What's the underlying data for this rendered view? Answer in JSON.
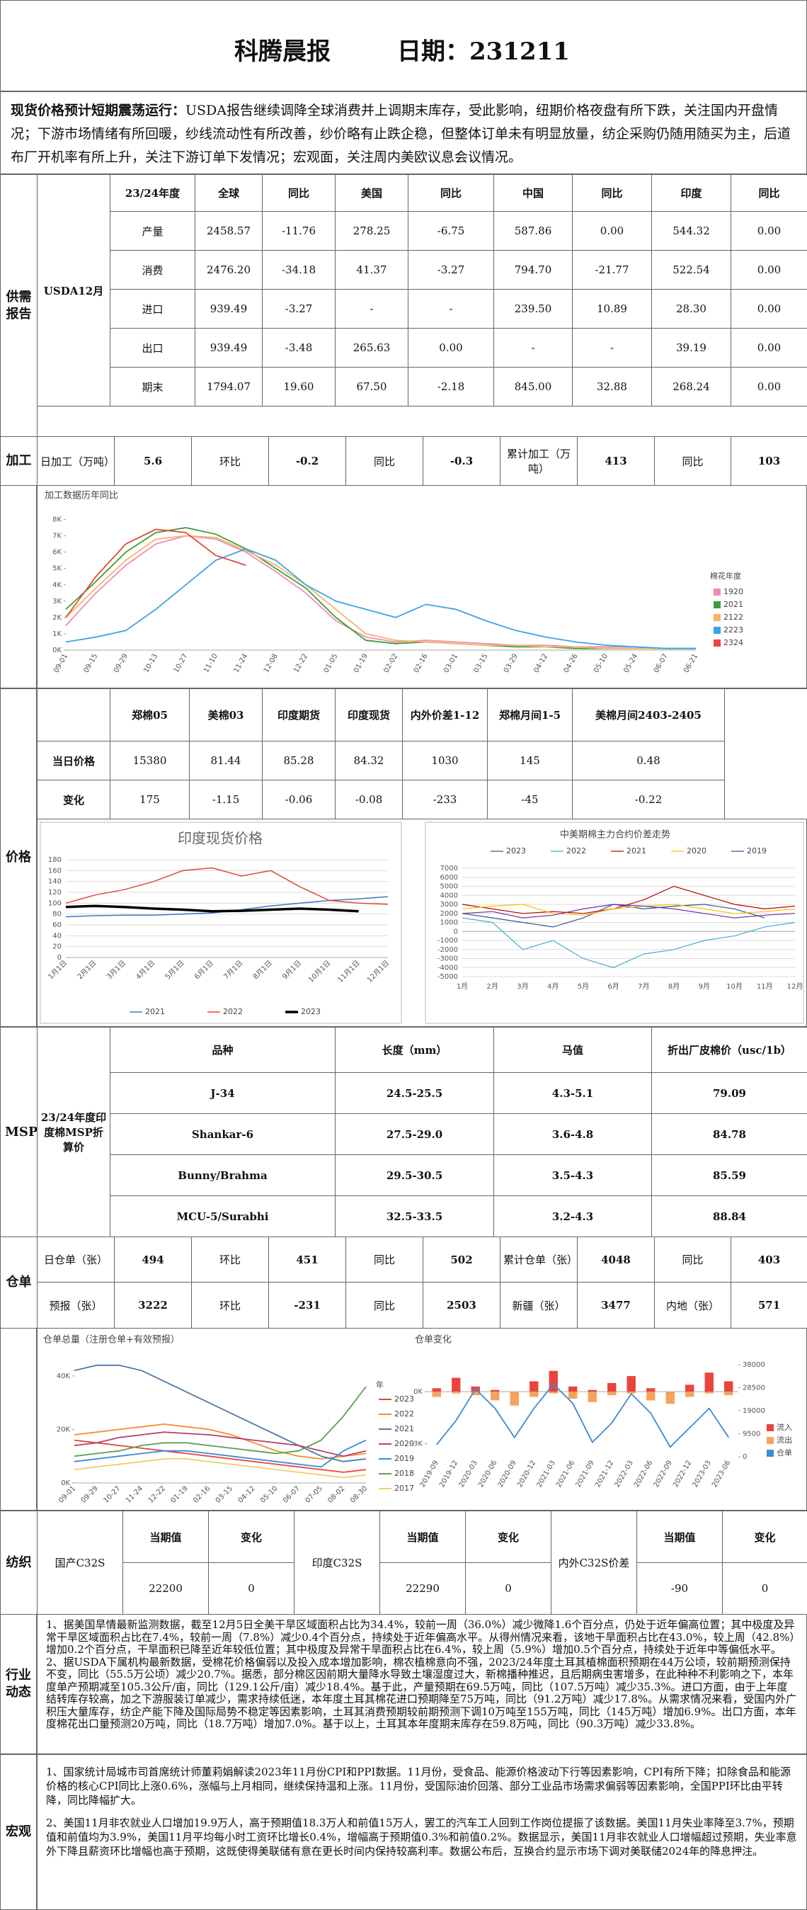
{
  "header": {
    "title": "科腾晨报",
    "date": "日期：231211"
  },
  "summary": {
    "lead": "现货价格预计短期震荡运行：",
    "text": "USDA报告继续调降全球消费并上调期末库存，受此影响，纽期价格夜盘有所下跌，关注国内开盘情况；下游市场情绪有所回暖，纱线流动性有所改善，纱价略有止跌企稳，但整体订单未有明显放量，纺企采购仍随用随买为主，后道布厂开机率有所上升，关注下游订单下发情况；宏观面，关注周内美欧议息会议情况。"
  },
  "supply": {
    "label": "供需报告",
    "source": "USDA12月",
    "headers": [
      "23/24年度",
      "全球",
      "同比",
      "美国",
      "同比",
      "中国",
      "同比",
      "印度",
      "同比"
    ],
    "rows": [
      [
        "产量",
        "2458.57",
        "-11.76",
        "278.25",
        "-6.75",
        "587.86",
        "0.00",
        "544.32",
        "0.00"
      ],
      [
        "消费",
        "2476.20",
        "-34.18",
        "41.37",
        "-3.27",
        "794.70",
        "-21.77",
        "522.54",
        "0.00"
      ],
      [
        "进口",
        "939.49",
        "-3.27",
        "-",
        "-",
        "239.50",
        "10.89",
        "28.30",
        "0.00"
      ],
      [
        "出口",
        "939.49",
        "-3.48",
        "265.63",
        "0.00",
        "-",
        "-",
        "39.19",
        "0.00"
      ],
      [
        "期末",
        "1794.07",
        "19.60",
        "67.50",
        "-2.18",
        "845.00",
        "32.88",
        "268.24",
        "0.00"
      ]
    ]
  },
  "processing": {
    "label": "加工",
    "cells": [
      "日加工（万吨）",
      "5.6",
      "环比",
      "-0.2",
      "同比",
      "-0.3",
      "累计加工（万吨）",
      "413",
      "同比",
      "103"
    ]
  },
  "processing_chart": {
    "type": "line",
    "title": "加工数据历年同比",
    "legend_title": "棉花年度",
    "grid": false,
    "categories": [
      "09-01",
      "09-15",
      "09-29",
      "10-13",
      "10-27",
      "11-10",
      "11-24",
      "12-08",
      "12-22",
      "01-05",
      "01-19",
      "02-02",
      "02-16",
      "03-01",
      "03-15",
      "03-29",
      "04-12",
      "04-26",
      "05-10",
      "05-24",
      "06-07",
      "06-21"
    ],
    "ylim": [
      0,
      8500
    ],
    "yticks": [
      {
        "value": 0,
        "label": "0K"
      },
      {
        "value": 1000,
        "label": "1K"
      },
      {
        "value": 2000,
        "label": "2K"
      },
      {
        "value": 3000,
        "label": "3K"
      },
      {
        "value": 4000,
        "label": "4K"
      },
      {
        "value": 5000,
        "label": "5K"
      },
      {
        "value": 6000,
        "label": "6K"
      },
      {
        "value": 7000,
        "label": "7K"
      },
      {
        "value": 8000,
        "label": "8K"
      }
    ],
    "series": [
      {
        "name": "1920",
        "color": "#f08cb4",
        "values": [
          1500,
          3500,
          5200,
          6500,
          7000,
          6800,
          6000,
          4800,
          3500,
          1800,
          800,
          500,
          600,
          500,
          400,
          300,
          300,
          200,
          200,
          200,
          100,
          100
        ]
      },
      {
        "name": "2021",
        "color": "#3a9e3a",
        "values": [
          2500,
          4200,
          6000,
          7200,
          7500,
          7100,
          6200,
          5000,
          3800,
          2000,
          600,
          400,
          500,
          400,
          300,
          200,
          200,
          100,
          100,
          100,
          100,
          100
        ]
      },
      {
        "name": "2122",
        "color": "#f5b36b",
        "values": [
          2000,
          3800,
          5500,
          6800,
          7000,
          6900,
          6100,
          5200,
          4000,
          2500,
          1000,
          600,
          500,
          400,
          300,
          300,
          200,
          200,
          100,
          100,
          100,
          100
        ]
      },
      {
        "name": "2223",
        "color": "#3ba4e6",
        "values": [
          500,
          800,
          1200,
          2500,
          4000,
          5500,
          6200,
          5500,
          4000,
          3000,
          2500,
          2000,
          2800,
          2500,
          1800,
          1200,
          800,
          500,
          300,
          200,
          100,
          100
        ]
      },
      {
        "name": "2324",
        "color": "#e8453c",
        "values": [
          2000,
          4500,
          6500,
          7400,
          7200,
          5800,
          5200,
          null,
          null,
          null,
          null,
          null,
          null,
          null,
          null,
          null,
          null,
          null,
          null,
          null,
          null,
          null
        ]
      }
    ]
  },
  "price": {
    "label": "价格",
    "headers": [
      "郑棉05",
      "美棉03",
      "印度期货",
      "印度现货",
      "内外价差1-12",
      "郑棉月间1-5",
      "美棉月间2403-2405"
    ],
    "rows": [
      [
        "当日价格",
        "15380",
        "81.44",
        "85.28",
        "84.32",
        "1030",
        "145",
        "0.48"
      ],
      [
        "变化",
        "175",
        "-1.15",
        "-0.06",
        "-0.08",
        "-233",
        "-45",
        "-0.22"
      ]
    ]
  },
  "price_charts": [
    {
      "type": "line",
      "title": "印度现货价格",
      "grid": true,
      "categories": [
        "1月1日",
        "2月1日",
        "3月1日",
        "4月1日",
        "5月1日",
        "6月1日",
        "7月1日",
        "8月1日",
        "9月1日",
        "10月1日",
        "11月1日",
        "12月1日"
      ],
      "ylim": [
        0,
        180
      ],
      "yticks": [
        0,
        20,
        40,
        60,
        80,
        100,
        120,
        140,
        160,
        180
      ],
      "series": [
        {
          "name": "2021",
          "color": "#4472c4",
          "values": [
            75,
            77,
            78,
            78,
            80,
            82,
            88,
            95,
            100,
            105,
            108,
            112
          ]
        },
        {
          "name": "2022",
          "color": "#e0473c",
          "values": [
            100,
            115,
            125,
            140,
            160,
            165,
            150,
            160,
            130,
            105,
            100,
            98
          ]
        },
        {
          "name": "2023",
          "color": "#000000",
          "values": [
            93,
            95,
            93,
            90,
            88,
            85,
            86,
            88,
            90,
            88,
            85,
            null
          ]
        }
      ]
    },
    {
      "type": "line",
      "title": "中美期棉主力合约价差走势",
      "grid": true,
      "categories": [
        "1月",
        "2月",
        "3月",
        "4月",
        "5月",
        "6月",
        "7月",
        "8月",
        "9月",
        "10月",
        "11月",
        "12月"
      ],
      "ylim": [
        -5000,
        7000
      ],
      "yticks": [
        -5000,
        -4000,
        -3000,
        -2000,
        -1000,
        0,
        1000,
        2000,
        3000,
        4000,
        5000,
        6000,
        7000
      ],
      "series": [
        {
          "name": "2023",
          "color": "#2f5597",
          "values": [
            2000,
            1500,
            1000,
            500,
            1500,
            3000,
            2500,
            2800,
            3000,
            2500,
            1500,
            null
          ]
        },
        {
          "name": "2022",
          "color": "#3fb0c9",
          "values": [
            1500,
            1000,
            -2000,
            -1000,
            -3000,
            -4000,
            -2500,
            -2000,
            -1000,
            -500,
            500,
            1000
          ]
        },
        {
          "name": "2021",
          "color": "#c00000",
          "values": [
            3000,
            2500,
            2000,
            2200,
            2000,
            2500,
            3500,
            5000,
            4000,
            3000,
            2500,
            2800
          ]
        },
        {
          "name": "2020",
          "color": "#ffc000",
          "values": [
            2500,
            2800,
            3000,
            2000,
            1800,
            2500,
            2800,
            3000,
            2500,
            2000,
            2200,
            2500
          ]
        },
        {
          "name": "2019",
          "color": "#7030a0",
          "values": [
            2000,
            2200,
            1500,
            1800,
            2500,
            3000,
            2800,
            2500,
            2000,
            1500,
            1800,
            2000
          ]
        }
      ]
    }
  ],
  "msp": {
    "label": "MSP",
    "subtitle": "23/24年度印度棉MSP折算价",
    "headers": [
      "品种",
      "长度（mm）",
      "马值",
      "折出厂皮棉价（usc/1b）"
    ],
    "rows": [
      [
        "J-34",
        "24.5-25.5",
        "4.3-5.1",
        "79.09"
      ],
      [
        "Shankar-6",
        "27.5-29.0",
        "3.6-4.8",
        "84.78"
      ],
      [
        "Bunny/Brahma",
        "29.5-30.5",
        "3.5-4.3",
        "85.59"
      ],
      [
        "MCU-5/Surabhi",
        "32.5-33.5",
        "3.2-4.3",
        "88.84"
      ]
    ]
  },
  "warehouse": {
    "label": "仓单",
    "rows": [
      [
        "日仓单（张）",
        "494",
        "环比",
        "451",
        "同比",
        "502",
        "累计仓单（张）",
        "4048",
        "同比",
        "403"
      ],
      [
        "预报（张）",
        "3222",
        "环比",
        "-231",
        "同比",
        "2503",
        "新疆（张）",
        "3477",
        "内地（张）",
        "571"
      ]
    ]
  },
  "warehouse_charts": [
    {
      "type": "line",
      "title": "仓单总量（注册仓单+有效预报）",
      "legend_title": "年",
      "grid": false,
      "categories": [
        "09-01",
        "09-29",
        "10-27",
        "11-24",
        "12-22",
        "01-19",
        "02-16",
        "03-15",
        "04-12",
        "05-10",
        "06-07",
        "07-05",
        "08-02",
        "08-30"
      ],
      "ylim": [
        0,
        45000
      ],
      "yticks": [
        {
          "value": 0,
          "label": "0K"
        },
        {
          "value": 20000,
          "label": "20K"
        },
        {
          "value": 40000,
          "label": "40K"
        }
      ],
      "series": [
        {
          "name": "2023",
          "color": "#e8453c",
          "values": [
            16000,
            15000,
            14000,
            13000,
            12000,
            11000,
            10000,
            9000,
            8000,
            7000,
            6000,
            5000,
            4000,
            5000
          ]
        },
        {
          "name": "2022",
          "color": "#f28e2b",
          "values": [
            18000,
            19000,
            20000,
            21000,
            22000,
            21000,
            20000,
            18000,
            15000,
            12000,
            10000,
            9000,
            10000,
            11000
          ]
        },
        {
          "name": "2021",
          "color": "#4e79a7",
          "values": [
            42000,
            44000,
            44000,
            42000,
            38000,
            34000,
            30000,
            26000,
            22000,
            18000,
            14000,
            10000,
            8000,
            9000
          ]
        },
        {
          "name": "2020",
          "color": "#b5426b",
          "values": [
            14000,
            15000,
            17000,
            18000,
            19000,
            18500,
            18000,
            17000,
            16000,
            15000,
            14000,
            12000,
            10000,
            12000
          ]
        },
        {
          "name": "2019",
          "color": "#3b8bd4",
          "values": [
            8000,
            9000,
            10000,
            11000,
            12000,
            12000,
            11000,
            10000,
            9000,
            8000,
            7000,
            6000,
            12000,
            16000
          ]
        },
        {
          "name": "2018",
          "color": "#59a14f",
          "values": [
            10000,
            11000,
            12000,
            14000,
            15000,
            15000,
            14000,
            13000,
            12000,
            11000,
            12000,
            16000,
            25000,
            36000
          ]
        },
        {
          "name": "2017",
          "color": "#f1ce63",
          "values": [
            5000,
            6000,
            7000,
            8000,
            9000,
            9000,
            8000,
            7000,
            6000,
            5000,
            4000,
            3000,
            2000,
            3000
          ]
        }
      ]
    },
    {
      "type": "bar",
      "title": "仓单变化",
      "grid": false,
      "categories": [
        "2019-09",
        "2019-12",
        "2020-03",
        "2020-06",
        "2020-09",
        "2020-12",
        "2021-03",
        "2021-06",
        "2021-09",
        "2021-12",
        "2022-03",
        "2022-06",
        "2022-09",
        "2022-12",
        "2023-03",
        "2023-06"
      ],
      "ylim": [
        -3750,
        2250
      ],
      "yticks": [
        {
          "value": 0,
          "label": "0K"
        },
        {
          "value": -3000,
          "label": "-3K"
        }
      ],
      "y2lim": [
        0,
        43000
      ],
      "y2ticks": [
        0,
        9500,
        19000,
        28500,
        38000
      ],
      "series": [
        {
          "name": "流入",
          "color": "#e8453c",
          "values": [
            200,
            800,
            300,
            100,
            0,
            600,
            1200,
            300,
            100,
            500,
            900,
            200,
            0,
            400,
            1100,
            600
          ]
        },
        {
          "name": "流出",
          "color": "#f5a25d",
          "values": [
            -300,
            -100,
            -200,
            -500,
            -800,
            -300,
            -100,
            -400,
            -600,
            -200,
            -100,
            -500,
            -700,
            -300,
            -100,
            -200
          ]
        },
        {
          "name": "仓单",
          "color": "#3b8bd4",
          "axis": "y2",
          "values": [
            5000,
            15000,
            28000,
            20000,
            8000,
            20000,
            30000,
            22000,
            6000,
            14000,
            26000,
            18000,
            4000,
            12000,
            20000,
            8000
          ]
        }
      ]
    }
  ],
  "textile": {
    "label": "纺织",
    "groups": [
      {
        "name": "国产C32S",
        "headers": [
          "当期值",
          "变化"
        ],
        "values": [
          "22200",
          "0"
        ]
      },
      {
        "name": "印度C32S",
        "headers": [
          "当期值",
          "变化"
        ],
        "values": [
          "22290",
          "0"
        ]
      },
      {
        "name": "内外C32S价差",
        "headers": [
          "当期值",
          "变化"
        ],
        "values": [
          "-90",
          "0"
        ]
      }
    ]
  },
  "industry": {
    "label": "行业动态",
    "paragraphs": [
      "1、据美国旱情最新监测数据，截至12月5日全美干旱区域面积占比为34.4%，较前一周（36.0%）减少微降1.6个百分点，仍处于近年偏高位置；其中极度及异常干旱区域面积占比在7.4%，较前一周（7.8%）减少0.4个百分点，持续处于近年偏高水平。从得州情况来看，该地干旱面积占比在43.0%，较上周（42.8%）增加0.2个百分点，干旱面积已降至近年较低位置；其中极度及异常干旱面积占比在6.4%，较上周（5.9%）增加0.5个百分点，持续处于近年中等偏低水平。",
      "2、据USDA下属机构最新数据，受棉花价格偏弱以及投入成本增加影响，棉农植棉意向不强，2023/24年度土耳其植棉面积预期在44万公顷，较前期预测保持不变，同比（55.5万公顷）减少20.7%。据悉，部分棉区因前期大量降水导致土壤湿度过大，新棉播种推迟，且后期病虫害增多，在此种种不利影响之下，本年度单产预期减至105.3公斤/亩，同比（129.1公斤/亩）减少18.4%。基于此，产量预期在69.5万吨，同比（107.5万吨）减少35.3%。进口方面，由于上年度结转库存较高，加之下游服装订单减少，需求持续低迷，本年度土耳其棉花进口预期降至75万吨，同比（91.2万吨）减少17.8%。从需求情况来看，受国内外广积压大量库存，纺企产能下降及国际局势不稳定等因素影响，土耳其消费预期较前期预测下调10万吨至155万吨，同比（145万吨）增加6.9%。出口方面，本年度棉花出口量预测20万吨，同比（18.7万吨）增加7.0%。基于以上，土耳其本年度期末库存在59.8万吨，同比（90.3万吨）减少33.8%。"
    ]
  },
  "macro": {
    "label": "宏观",
    "paragraphs": [
      "1、国家统计局城市司首席统计师董莉娟解读2023年11月份CPI和PPI数据。11月份，受食品、能源价格波动下行等因素影响，CPI有所下降；扣除食品和能源价格的核心CPI同比上涨0.6%，涨幅与上月相同，继续保持温和上涨。11月份，受国际油价回落、部分工业品市场需求偏弱等因素影响，全国PPI环比由平转降，同比降幅扩大。",
      "2、美国11月非农就业人口增加19.9万人，高于预期值18.3万人和前值15万人，罢工的汽车工人回到工作岗位提振了该数据。美国11月失业率降至3.7%，预期值和前值均为3.9%，美国11月平均每小时工资环比增长0.4%，增幅高于预期值0.3%和前值0.2%。数据显示，美国11月非农就业人口增幅超过预期，失业率意外下降且薪资环比增幅也高于预期，这既使得美联储有意在更长时间内保持较高利率。数据公布后，互换合约显示市场下调对美联储2024年的降息押注。"
    ]
  }
}
